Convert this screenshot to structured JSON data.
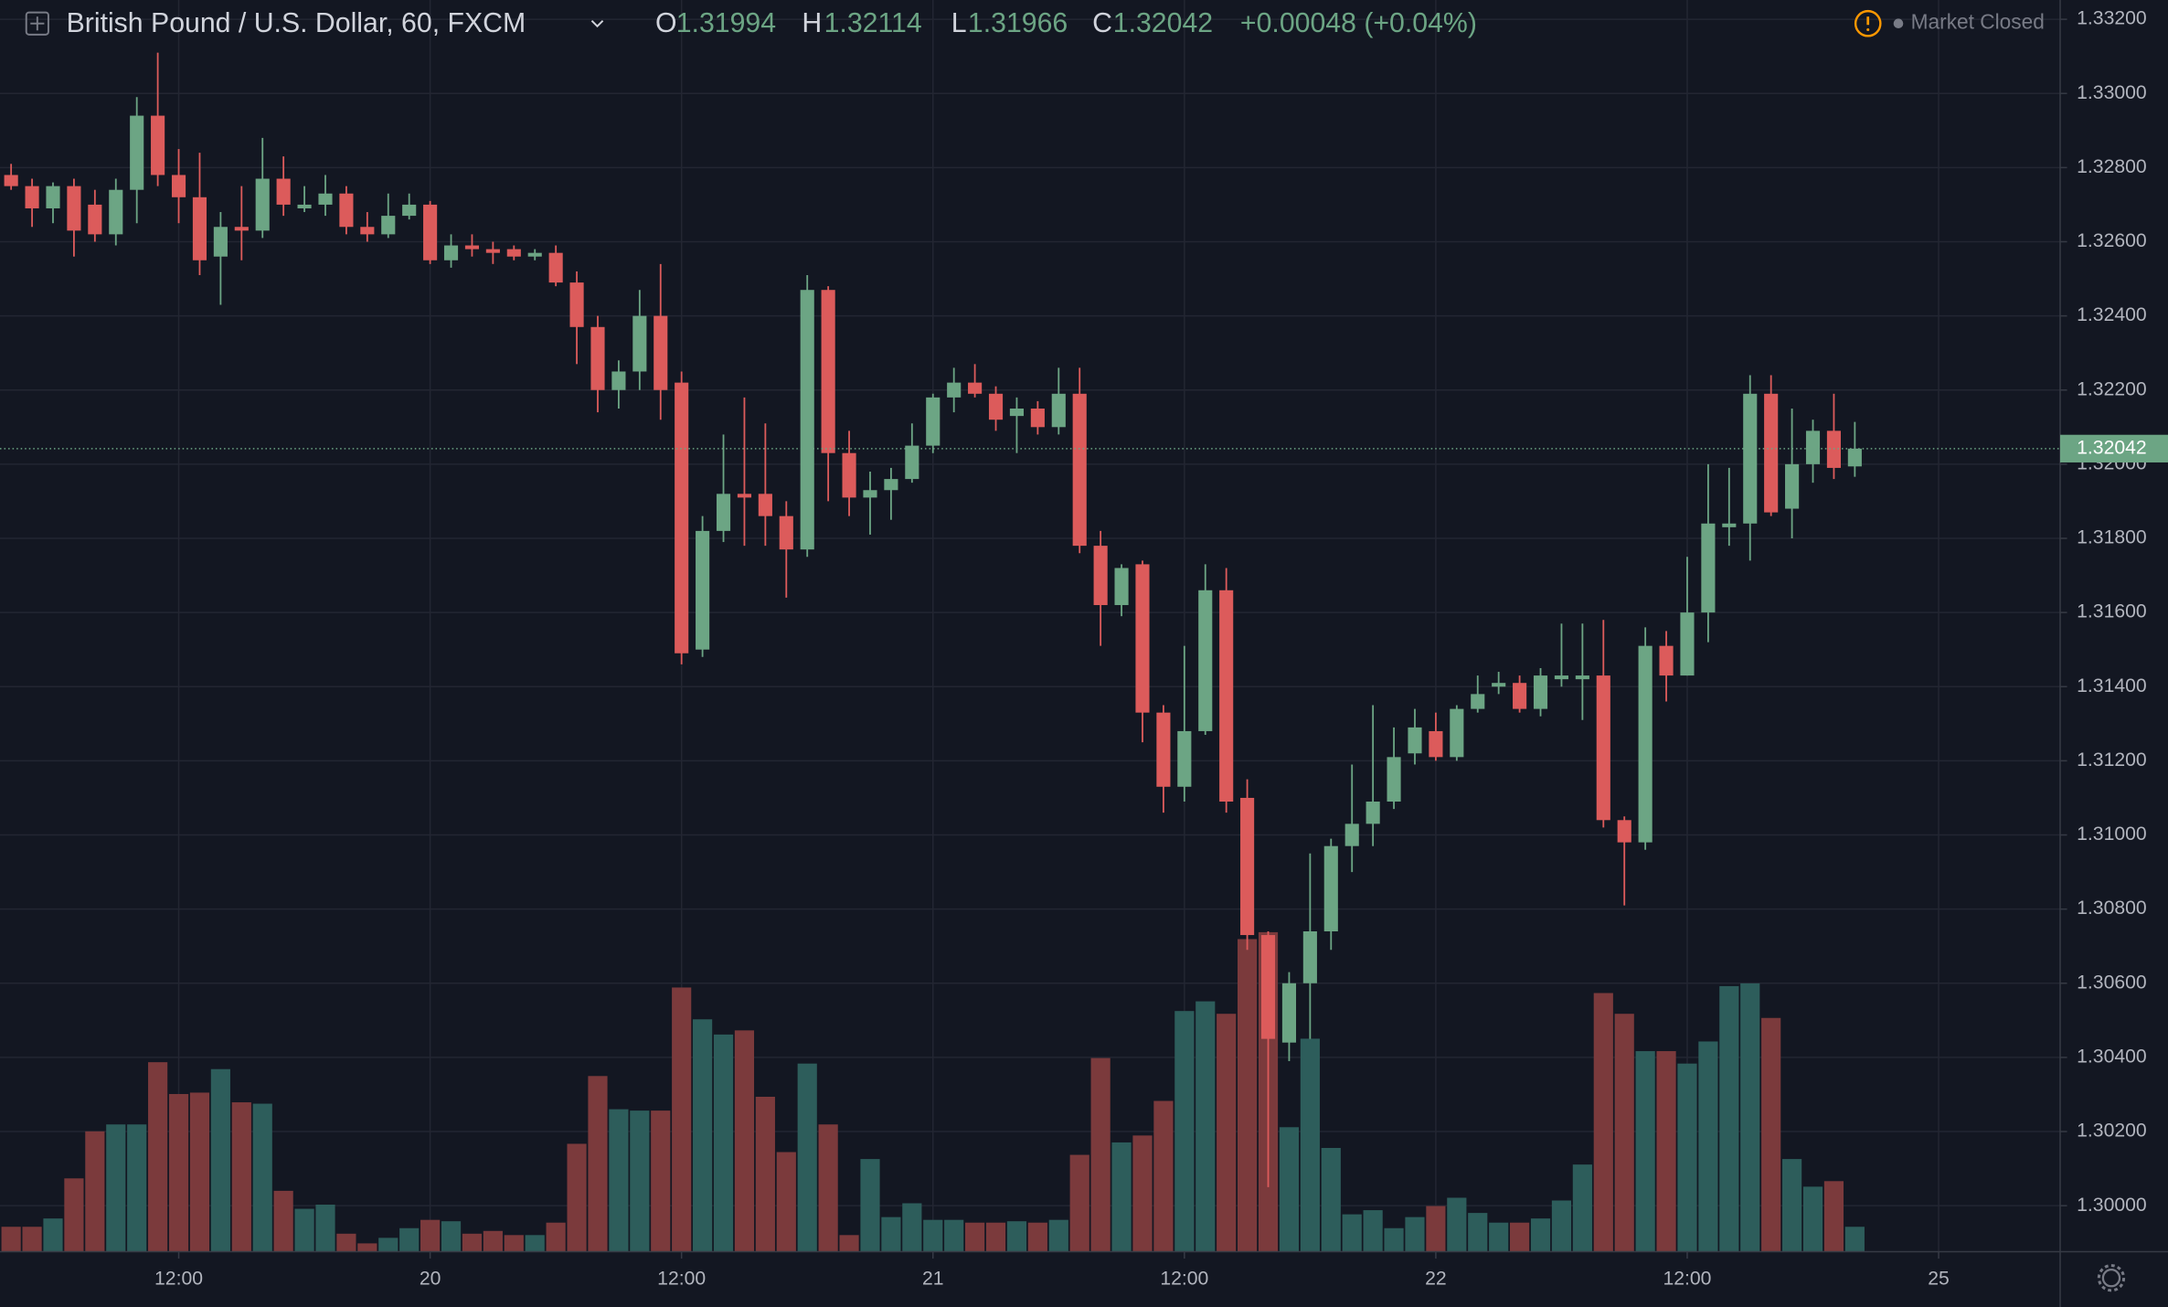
{
  "chart_data": {
    "type": "candlestick",
    "title": "British Pound / U.S. Dollar, 60, FXCM",
    "ohlc_letters": [
      "O",
      "H",
      "L",
      "C"
    ],
    "change": "+0.00048 (+0.04%)",
    "status": "Market Closed",
    "up_color": "#6ca584",
    "down_color": "#dc5b5b",
    "up_volume_color": "#2d5d5b",
    "down_volume_color": "#7b3a3c",
    "grid": true,
    "ylim": [
      1.29876,
      1.33252
    ],
    "xlim": [
      -0.53,
      97.8
    ],
    "vlim": [
      0,
      905
    ],
    "yticks": [
      {
        "value": 1.332,
        "label": "1.33200"
      },
      {
        "value": 1.33,
        "label": "1.33000"
      },
      {
        "value": 1.328,
        "label": "1.32800"
      },
      {
        "value": 1.326,
        "label": "1.32600"
      },
      {
        "value": 1.324,
        "label": "1.32400"
      },
      {
        "value": 1.322,
        "label": "1.32200"
      },
      {
        "value": 1.32,
        "label": "1.32000"
      },
      {
        "value": 1.318,
        "label": "1.31800"
      },
      {
        "value": 1.316,
        "label": "1.31600"
      },
      {
        "value": 1.314,
        "label": "1.31400"
      },
      {
        "value": 1.312,
        "label": "1.31200"
      },
      {
        "value": 1.31,
        "label": "1.31000"
      },
      {
        "value": 1.308,
        "label": "1.30800"
      },
      {
        "value": 1.306,
        "label": "1.30600"
      },
      {
        "value": 1.304,
        "label": "1.30400"
      },
      {
        "value": 1.302,
        "label": "1.30200"
      },
      {
        "value": 1.3,
        "label": "1.30000"
      }
    ],
    "xticks": [
      {
        "value": 8,
        "label": "12:00"
      },
      {
        "value": 20,
        "label": "20"
      },
      {
        "value": 32,
        "label": "12:00"
      },
      {
        "value": 44,
        "label": "21"
      },
      {
        "value": 56,
        "label": "12:00"
      },
      {
        "value": 68,
        "label": "22"
      },
      {
        "value": 80,
        "label": "12:00"
      },
      {
        "value": 92,
        "label": "25"
      }
    ],
    "open": [
      1.3278,
      1.3275,
      1.3269,
      1.3275,
      1.327,
      1.3262,
      1.3274,
      1.3294,
      1.3278,
      1.3272,
      1.3256,
      1.3264,
      1.3263,
      1.3277,
      1.3269,
      1.327,
      1.3273,
      1.3264,
      1.3262,
      1.3267,
      1.327,
      1.3255,
      1.3259,
      1.3258,
      1.3258,
      1.3256,
      1.3257,
      1.3249,
      1.3237,
      1.322,
      1.3225,
      1.324,
      1.3222,
      1.315,
      1.3182,
      1.3192,
      1.3192,
      1.3186,
      1.3177,
      1.3247,
      1.3203,
      1.3191,
      1.3193,
      1.3196,
      1.3205,
      1.3218,
      1.3222,
      1.3219,
      1.3213,
      1.3215,
      1.321,
      1.3219,
      1.3178,
      1.3162,
      1.3173,
      1.3133,
      1.3113,
      1.3128,
      1.3166,
      1.311,
      1.3073,
      1.3044,
      1.306,
      1.3074,
      1.3097,
      1.3103,
      1.3109,
      1.3122,
      1.3128,
      1.3121,
      1.3134,
      1.314,
      1.3141,
      1.3134,
      1.3142,
      1.3142,
      1.3143,
      1.3104,
      1.3098,
      1.3151,
      1.3143,
      1.316,
      1.3183,
      1.3184,
      1.3219,
      1.3188,
      1.32,
      1.3209,
      1.31994
    ],
    "high": [
      1.3281,
      1.3277,
      1.3276,
      1.3277,
      1.3274,
      1.3277,
      1.3299,
      1.3311,
      1.3285,
      1.3284,
      1.3268,
      1.3275,
      1.3288,
      1.3283,
      1.3275,
      1.3278,
      1.3275,
      1.3268,
      1.3273,
      1.3273,
      1.3271,
      1.3262,
      1.3262,
      1.326,
      1.3259,
      1.3258,
      1.3259,
      1.3252,
      1.324,
      1.3228,
      1.3247,
      1.3254,
      1.3225,
      1.3186,
      1.3208,
      1.3218,
      1.3211,
      1.319,
      1.3251,
      1.3248,
      1.3209,
      1.3198,
      1.3199,
      1.3211,
      1.3219,
      1.3226,
      1.3227,
      1.3221,
      1.3218,
      1.3217,
      1.3226,
      1.3226,
      1.3182,
      1.3173,
      1.3174,
      1.3135,
      1.3151,
      1.3173,
      1.3172,
      1.3115,
      1.3074,
      1.3063,
      1.3095,
      1.3099,
      1.3119,
      1.3135,
      1.3129,
      1.3134,
      1.3133,
      1.3135,
      1.3143,
      1.3144,
      1.3143,
      1.3145,
      1.3157,
      1.3157,
      1.3158,
      1.3105,
      1.3156,
      1.3155,
      1.3175,
      1.32,
      1.3199,
      1.3224,
      1.3224,
      1.3215,
      1.3212,
      1.3219,
      1.32114
    ],
    "low": [
      1.3274,
      1.3264,
      1.3265,
      1.3256,
      1.326,
      1.3259,
      1.3265,
      1.3275,
      1.3265,
      1.3251,
      1.3243,
      1.3255,
      1.3261,
      1.3267,
      1.3268,
      1.3267,
      1.3262,
      1.326,
      1.3261,
      1.3266,
      1.3254,
      1.3253,
      1.3256,
      1.3254,
      1.3255,
      1.3255,
      1.3248,
      1.3227,
      1.3214,
      1.3215,
      1.322,
      1.3212,
      1.3146,
      1.3148,
      1.3179,
      1.3178,
      1.3178,
      1.3164,
      1.3175,
      1.319,
      1.3186,
      1.3181,
      1.3185,
      1.3195,
      1.3203,
      1.3214,
      1.3218,
      1.3209,
      1.3203,
      1.3208,
      1.3208,
      1.3176,
      1.3151,
      1.3159,
      1.3125,
      1.3106,
      1.3109,
      1.3127,
      1.3106,
      1.3069,
      1.3005,
      1.3039,
      1.3045,
      1.3069,
      1.309,
      1.3097,
      1.3107,
      1.3119,
      1.312,
      1.312,
      1.3133,
      1.3138,
      1.3133,
      1.3132,
      1.314,
      1.3131,
      1.3102,
      1.3081,
      1.3096,
      1.3136,
      1.3143,
      1.3152,
      1.3178,
      1.3174,
      1.3186,
      1.318,
      1.3195,
      1.3196,
      1.31966
    ],
    "close": [
      1.3275,
      1.3269,
      1.3275,
      1.3263,
      1.3262,
      1.3274,
      1.3294,
      1.3278,
      1.3272,
      1.3255,
      1.3264,
      1.3263,
      1.3277,
      1.327,
      1.327,
      1.3273,
      1.3264,
      1.3262,
      1.3267,
      1.327,
      1.3255,
      1.3259,
      1.3258,
      1.3257,
      1.3256,
      1.3257,
      1.3249,
      1.3237,
      1.322,
      1.3225,
      1.324,
      1.322,
      1.3149,
      1.3182,
      1.3192,
      1.3191,
      1.3186,
      1.3177,
      1.3247,
      1.3203,
      1.3191,
      1.3193,
      1.3196,
      1.3205,
      1.3218,
      1.3222,
      1.3219,
      1.3212,
      1.3215,
      1.321,
      1.3219,
      1.3178,
      1.3162,
      1.3172,
      1.3133,
      1.3113,
      1.3128,
      1.3166,
      1.3109,
      1.3073,
      1.3045,
      1.306,
      1.3074,
      1.3097,
      1.3103,
      1.3109,
      1.3121,
      1.3129,
      1.3121,
      1.3134,
      1.3138,
      1.3141,
      1.3134,
      1.3143,
      1.3143,
      1.3143,
      1.3104,
      1.3098,
      1.3151,
      1.3143,
      1.316,
      1.3184,
      1.3184,
      1.3219,
      1.3187,
      1.32,
      1.3209,
      1.3199,
      1.32042
    ],
    "volume": [
      18,
      18,
      24,
      53,
      87,
      92,
      92,
      137,
      114,
      115,
      132,
      108,
      107,
      44,
      31,
      34,
      13,
      6,
      10,
      17,
      23,
      22,
      13,
      15,
      12,
      12,
      21,
      78,
      127,
      103,
      102,
      102,
      191,
      168,
      157,
      160,
      112,
      72,
      136,
      92,
      12,
      67,
      25,
      35,
      23,
      23,
      21,
      21,
      22,
      21,
      23,
      70,
      140,
      79,
      84,
      109,
      174,
      181,
      172,
      226,
      231,
      90,
      154,
      75,
      27,
      30,
      17,
      25,
      33,
      39,
      28,
      21,
      21,
      24,
      37,
      63,
      187,
      172,
      145,
      145,
      136,
      152,
      192,
      194,
      169,
      67,
      47,
      51,
      18
    ]
  }
}
